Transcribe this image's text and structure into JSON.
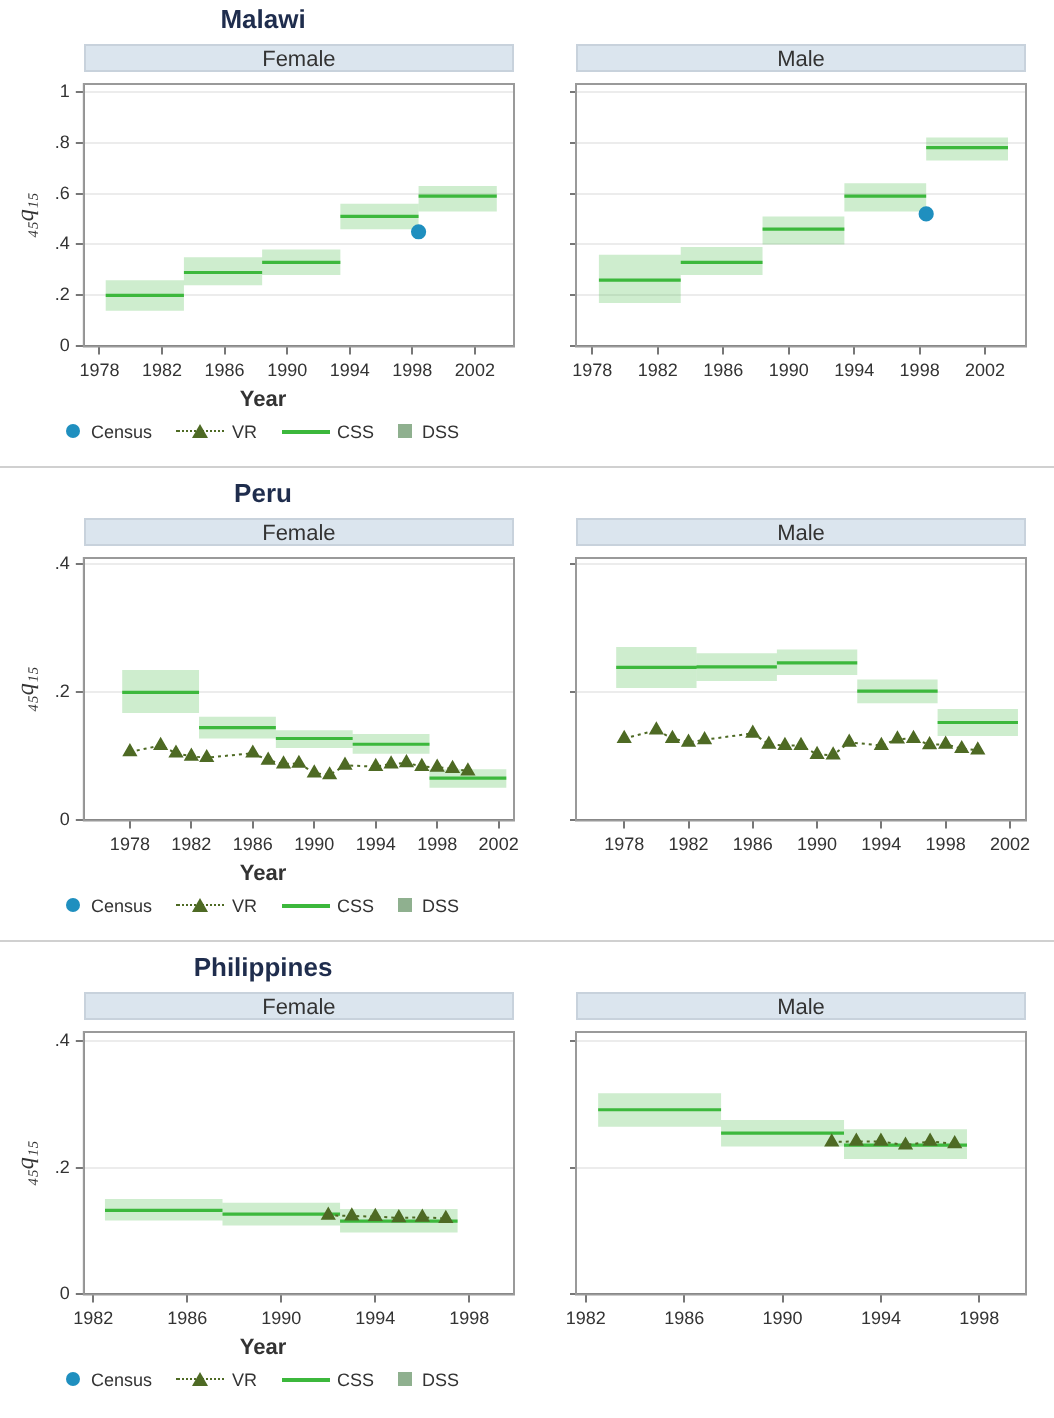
{
  "chart_data": [
    {
      "type": "line",
      "title": "Malawi",
      "subtitle": "Female",
      "xlabel": "Year",
      "ylabel": "₄₅q₁₅",
      "xlim": [
        1977,
        2004.5
      ],
      "xticks": [
        1978,
        1982,
        1986,
        1990,
        1994,
        1998,
        2002
      ],
      "ylim": [
        0,
        1.03
      ],
      "yticks": [
        {
          "value": 0,
          "label": "0"
        },
        {
          "value": 0.2,
          "label": ".2"
        },
        {
          "value": 0.4,
          "label": ".4"
        },
        {
          "value": 0.6,
          "label": ".6"
        },
        {
          "value": 0.8,
          "label": ".8"
        },
        {
          "value": 1,
          "label": "1"
        }
      ],
      "grid": "y",
      "legend": "bottom",
      "series": [
        {
          "name": "Census",
          "type": "scatter",
          "marker": "circle",
          "color": "#1f8fbf",
          "x": [
            1998.4
          ],
          "values": [
            0.45
          ]
        },
        {
          "name": "VR",
          "type": "line",
          "marker": "triangle",
          "line_style": "dotted",
          "color": "#4e6a24"
        },
        {
          "name": "CSS",
          "type": "line",
          "marker": "none",
          "line_style": "solid",
          "color": "#3cb83c",
          "x": [
            1978.4,
            1983.4,
            null,
            1983.4,
            1988.4,
            null,
            1988.4,
            1993.4,
            null,
            1993.4,
            1998.4,
            null,
            1998.4,
            2003.4
          ],
          "values": [
            0.2,
            0.2,
            null,
            0.29,
            0.29,
            null,
            0.33,
            0.33,
            null,
            0.51,
            0.51,
            null,
            0.59,
            0.59
          ],
          "lower": [
            0.14,
            0.14,
            null,
            0.24,
            0.24,
            null,
            0.28,
            0.28,
            null,
            0.46,
            0.46,
            null,
            0.53,
            0.53
          ],
          "upper": [
            0.26,
            0.26,
            null,
            0.35,
            0.35,
            null,
            0.38,
            0.38,
            null,
            0.56,
            0.56,
            null,
            0.63,
            0.63
          ]
        },
        {
          "name": "DSS",
          "type": "scatter",
          "marker": "square",
          "color": "#8fb08f"
        }
      ]
    },
    {
      "type": "line",
      "subtitle": "Male",
      "xlim": [
        1977,
        2004.5
      ],
      "xticks": [
        1978,
        1982,
        1986,
        1990,
        1994,
        1998,
        2002
      ],
      "ylim": [
        0,
        1.03
      ],
      "yticks": [
        {
          "value": 0,
          "label": null
        },
        {
          "value": 0.2,
          "label": null
        },
        {
          "value": 0.4,
          "label": null
        },
        {
          "value": 0.6,
          "label": null
        },
        {
          "value": 0.8,
          "label": null
        },
        {
          "value": 1,
          "label": null
        }
      ],
      "grid": "y",
      "tick_labels": "x",
      "series": [
        {
          "type": "scatter",
          "marker": "circle",
          "color": "#1f8fbf",
          "x": [
            1998.4
          ],
          "values": [
            0.52
          ]
        },
        {
          "type": "line",
          "marker": "none",
          "line_style": "solid",
          "color": "#3cb83c",
          "x": [
            1978.4,
            1983.4,
            null,
            1983.4,
            1988.4,
            null,
            1988.4,
            1993.4,
            null,
            1993.4,
            1998.4,
            null,
            1998.4,
            2003.4
          ],
          "values": [
            0.26,
            0.26,
            null,
            0.33,
            0.33,
            null,
            0.46,
            0.46,
            null,
            0.59,
            0.59,
            null,
            0.78,
            0.78
          ],
          "lower": [
            0.17,
            0.17,
            null,
            0.28,
            0.28,
            null,
            0.4,
            0.4,
            null,
            0.53,
            0.53,
            null,
            0.73,
            0.73
          ],
          "upper": [
            0.36,
            0.36,
            null,
            0.39,
            0.39,
            null,
            0.51,
            0.51,
            null,
            0.64,
            0.64,
            null,
            0.82,
            0.82
          ]
        }
      ]
    },
    {
      "type": "line",
      "title": "Peru",
      "subtitle": "Female",
      "xlabel": "Year",
      "ylabel": "₄₅q₁₅",
      "xlim": [
        1975,
        2003
      ],
      "xticks": [
        1978,
        1982,
        1986,
        1990,
        1994,
        1998,
        2002
      ],
      "ylim": [
        0,
        0.41
      ],
      "yticks": [
        {
          "value": 0,
          "label": "0"
        },
        {
          "value": 0.2,
          "label": ".2"
        },
        {
          "value": 0.4,
          "label": ".4"
        }
      ],
      "grid": "y",
      "legend": "bottom",
      "series": [
        {
          "name": "Census",
          "type": "scatter",
          "marker": "circle",
          "color": "#1f8fbf"
        },
        {
          "name": "VR",
          "type": "line",
          "marker": "triangle",
          "line_style": "dotted",
          "color": "#4e6a24",
          "x": [
            1978,
            1980,
            1981,
            1982,
            1983,
            1986,
            1987,
            1988,
            1989,
            1990,
            1991,
            1992,
            1994,
            1995,
            1996,
            1997,
            1998,
            1999,
            2000
          ],
          "values": [
            0.107,
            0.117,
            0.105,
            0.1,
            0.098,
            0.105,
            0.094,
            0.088,
            0.089,
            0.074,
            0.071,
            0.086,
            0.084,
            0.088,
            0.09,
            0.084,
            0.083,
            0.081,
            0.077
          ]
        },
        {
          "name": "CSS",
          "type": "line",
          "marker": "none",
          "line_style": "solid",
          "color": "#3cb83c",
          "x": [
            1977.5,
            1982.5,
            null,
            1982.5,
            1987.5,
            null,
            1987.5,
            1992.5,
            null,
            1992.5,
            1997.5,
            null,
            1997.5,
            2002.5
          ],
          "values": [
            0.2,
            0.2,
            null,
            0.145,
            0.145,
            null,
            0.128,
            0.128,
            null,
            0.119,
            0.119,
            null,
            0.066,
            0.066
          ],
          "lower": [
            0.168,
            0.168,
            null,
            0.128,
            0.128,
            null,
            0.113,
            0.113,
            null,
            0.104,
            0.104,
            null,
            0.051,
            0.051
          ],
          "upper": [
            0.235,
            0.235,
            null,
            0.162,
            0.162,
            null,
            0.141,
            0.141,
            null,
            0.135,
            0.135,
            null,
            0.08,
            0.08
          ]
        },
        {
          "name": "DSS",
          "type": "scatter",
          "marker": "square",
          "color": "#8fb08f"
        }
      ]
    },
    {
      "type": "line",
      "subtitle": "Male",
      "xlim": [
        1975,
        2003
      ],
      "xticks": [
        1978,
        1982,
        1986,
        1990,
        1994,
        1998,
        2002
      ],
      "ylim": [
        0,
        0.41
      ],
      "yticks": [
        {
          "value": 0,
          "label": null
        },
        {
          "value": 0.2,
          "label": null
        },
        {
          "value": 0.4,
          "label": null
        }
      ],
      "grid": "y",
      "tick_labels": "x",
      "series": [
        {
          "type": "line",
          "marker": "triangle",
          "line_style": "dotted",
          "color": "#4e6a24",
          "x": [
            1978,
            1980,
            1981,
            1982,
            1983,
            1986,
            1987,
            1988,
            1989,
            1990,
            1991,
            1992,
            1994,
            1995,
            1996,
            1997,
            1998,
            1999,
            2000
          ],
          "values": [
            0.128,
            0.141,
            0.128,
            0.122,
            0.126,
            0.136,
            0.119,
            0.117,
            0.117,
            0.103,
            0.102,
            0.122,
            0.117,
            0.127,
            0.128,
            0.118,
            0.119,
            0.112,
            0.11
          ]
        },
        {
          "type": "line",
          "marker": "none",
          "line_style": "solid",
          "color": "#3cb83c",
          "x": [
            1977.5,
            1982.5,
            null,
            1982.5,
            1987.5,
            null,
            1987.5,
            1992.5,
            null,
            1992.5,
            1997.5,
            null,
            1997.5,
            2002.5
          ],
          "values": [
            0.239,
            0.239,
            null,
            0.24,
            0.24,
            null,
            0.246,
            0.246,
            null,
            0.202,
            0.202,
            null,
            0.153,
            0.153
          ],
          "lower": [
            0.207,
            0.207,
            null,
            0.218,
            0.218,
            null,
            0.227,
            0.227,
            null,
            0.183,
            0.183,
            null,
            0.132,
            0.132
          ],
          "upper": [
            0.271,
            0.271,
            null,
            0.261,
            0.261,
            null,
            0.267,
            0.267,
            null,
            0.22,
            0.22,
            null,
            0.174,
            0.174
          ]
        }
      ]
    },
    {
      "type": "line",
      "title": "Philippines",
      "subtitle": "Female",
      "xlabel": "Year",
      "ylabel": "₄₅q₁₅",
      "xlim": [
        1981.6,
        1999.9
      ],
      "xticks": [
        1982,
        1986,
        1990,
        1994,
        1998
      ],
      "ylim": [
        0,
        0.415
      ],
      "yticks": [
        {
          "value": 0,
          "label": "0"
        },
        {
          "value": 0.2,
          "label": ".2"
        },
        {
          "value": 0.4,
          "label": ".4"
        }
      ],
      "grid": "y",
      "legend": "bottom",
      "series": [
        {
          "name": "Census",
          "type": "scatter",
          "marker": "circle",
          "color": "#1f8fbf"
        },
        {
          "name": "VR",
          "type": "line",
          "marker": "triangle",
          "line_style": "dotted",
          "color": "#4e6a24",
          "x": [
            1992,
            1993,
            1994,
            1995,
            1996,
            1997
          ],
          "values": [
            0.125,
            0.124,
            0.123,
            0.121,
            0.122,
            0.12
          ]
        },
        {
          "name": "CSS",
          "type": "line",
          "marker": "none",
          "line_style": "solid",
          "color": "#3cb83c",
          "x": [
            1982.5,
            1987.5,
            null,
            1987.5,
            1992.5,
            null,
            1992.5,
            1997.5
          ],
          "values": [
            0.133,
            0.133,
            null,
            0.127,
            0.127,
            null,
            0.116,
            0.116
          ],
          "lower": [
            0.117,
            0.117,
            null,
            0.109,
            0.109,
            null,
            0.098,
            0.098
          ],
          "upper": [
            0.151,
            0.151,
            null,
            0.145,
            0.145,
            null,
            0.135,
            0.135
          ]
        },
        {
          "name": "DSS",
          "type": "scatter",
          "marker": "square",
          "color": "#8fb08f"
        }
      ]
    },
    {
      "type": "line",
      "subtitle": "Male",
      "xlim": [
        1981.6,
        1999.9
      ],
      "xticks": [
        1982,
        1986,
        1990,
        1994,
        1998
      ],
      "ylim": [
        0,
        0.415
      ],
      "yticks": [
        {
          "value": 0,
          "label": null
        },
        {
          "value": 0.2,
          "label": null
        },
        {
          "value": 0.4,
          "label": null
        }
      ],
      "grid": "y",
      "tick_labels": "x",
      "series": [
        {
          "type": "line",
          "marker": "triangle",
          "line_style": "dotted",
          "color": "#4e6a24",
          "x": [
            1992,
            1993,
            1994,
            1995,
            1996,
            1997
          ],
          "values": [
            0.241,
            0.242,
            0.242,
            0.236,
            0.242,
            0.238
          ]
        },
        {
          "type": "line",
          "marker": "none",
          "line_style": "solid",
          "color": "#3cb83c",
          "x": [
            1982.5,
            1987.5,
            null,
            1987.5,
            1992.5,
            null,
            1992.5,
            1997.5
          ],
          "values": [
            0.292,
            0.292,
            null,
            0.255,
            0.255,
            null,
            0.236,
            0.236
          ],
          "lower": [
            0.265,
            0.265,
            null,
            0.234,
            0.234,
            null,
            0.214,
            0.214
          ],
          "upper": [
            0.318,
            0.318,
            null,
            0.276,
            0.276,
            null,
            0.261,
            0.261
          ]
        }
      ]
    }
  ]
}
